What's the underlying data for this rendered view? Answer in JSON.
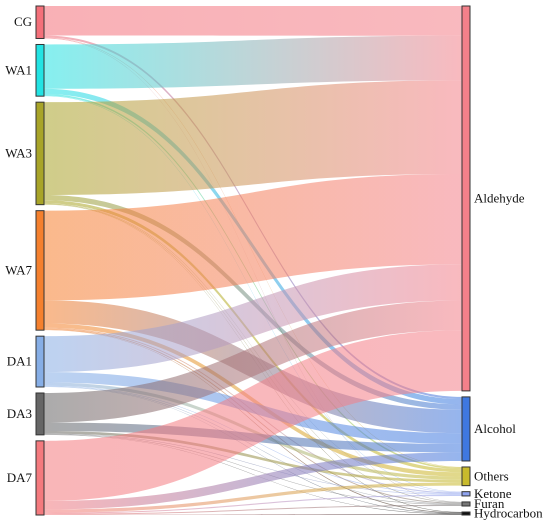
{
  "sources": [
    {
      "id": "CG",
      "label": "CG",
      "color": "#f4707a"
    },
    {
      "id": "WA1",
      "label": "WA1",
      "color": "#22e3e3"
    },
    {
      "id": "WA3",
      "label": "WA3",
      "color": "#a8a428"
    },
    {
      "id": "WA7",
      "label": "WA7",
      "color": "#f5802d"
    },
    {
      "id": "DA1",
      "label": "DA1",
      "color": "#86aee6"
    },
    {
      "id": "DA3",
      "label": "DA3",
      "color": "#666666"
    },
    {
      "id": "DA7",
      "label": "DA7",
      "color": "#f47a7e"
    }
  ],
  "targets": [
    {
      "id": "Aldehyde",
      "label": "Aldehyde",
      "color": "#f4808a"
    },
    {
      "id": "Alcohol",
      "label": "Alcohol",
      "color": "#3f78e0"
    },
    {
      "id": "Others",
      "label": "Others",
      "color": "#c8ba2c"
    },
    {
      "id": "Ketone",
      "label": "Ketone",
      "color": "#8fa3f0"
    },
    {
      "id": "Furan",
      "label": "Furan",
      "color": "#777777"
    },
    {
      "id": "Hydrocarbon",
      "label": "Hydrocarbon",
      "color": "#111111"
    }
  ],
  "links": [
    {
      "source": "CG",
      "target": "Aldehyde",
      "value": 28
    },
    {
      "source": "CG",
      "target": "Alcohol",
      "value": 2
    },
    {
      "source": "CG",
      "target": "Others",
      "value": 0.5
    },
    {
      "source": "CG",
      "target": "Furan",
      "value": 0.3
    },
    {
      "source": "WA1",
      "target": "Aldehyde",
      "value": 42
    },
    {
      "source": "WA1",
      "target": "Alcohol",
      "value": 5
    },
    {
      "source": "WA1",
      "target": "Others",
      "value": 1.5
    },
    {
      "source": "WA1",
      "target": "Ketone",
      "value": 0.5
    },
    {
      "source": "WA3",
      "target": "Aldehyde",
      "value": 88
    },
    {
      "source": "WA3",
      "target": "Alcohol",
      "value": 5
    },
    {
      "source": "WA3",
      "target": "Others",
      "value": 3
    },
    {
      "source": "WA3",
      "target": "Ketone",
      "value": 0.5
    },
    {
      "source": "WA3",
      "target": "Furan",
      "value": 0.5
    },
    {
      "source": "WA3",
      "target": "Hydrocarbon",
      "value": 0.2
    },
    {
      "source": "WA7",
      "target": "Aldehyde",
      "value": 85
    },
    {
      "source": "WA7",
      "target": "Alcohol",
      "value": 22
    },
    {
      "source": "WA7",
      "target": "Others",
      "value": 4
    },
    {
      "source": "WA7",
      "target": "Ketone",
      "value": 1
    },
    {
      "source": "WA7",
      "target": "Furan",
      "value": 1
    },
    {
      "source": "WA7",
      "target": "Hydrocarbon",
      "value": 0.3
    },
    {
      "source": "DA1",
      "target": "Aldehyde",
      "value": 34
    },
    {
      "source": "DA1",
      "target": "Alcohol",
      "value": 10
    },
    {
      "source": "DA1",
      "target": "Others",
      "value": 3
    },
    {
      "source": "DA1",
      "target": "Ketone",
      "value": 0.5
    },
    {
      "source": "DA1",
      "target": "Furan",
      "value": 0.5
    },
    {
      "source": "DA1",
      "target": "Hydrocarbon",
      "value": 0.2
    },
    {
      "source": "DA3",
      "target": "Aldehyde",
      "value": 28
    },
    {
      "source": "DA3",
      "target": "Alcohol",
      "value": 8
    },
    {
      "source": "DA3",
      "target": "Others",
      "value": 2.5
    },
    {
      "source": "DA3",
      "target": "Ketone",
      "value": 0.5
    },
    {
      "source": "DA3",
      "target": "Furan",
      "value": 0.5
    },
    {
      "source": "DA3",
      "target": "Hydrocarbon",
      "value": 0.2
    },
    {
      "source": "DA7",
      "target": "Aldehyde",
      "value": 57
    },
    {
      "source": "DA7",
      "target": "Alcohol",
      "value": 8
    },
    {
      "source": "DA7",
      "target": "Others",
      "value": 3
    },
    {
      "source": "DA7",
      "target": "Ketone",
      "value": 1
    },
    {
      "source": "DA7",
      "target": "Furan",
      "value": 1
    },
    {
      "source": "DA7",
      "target": "Hydrocarbon",
      "value": 0.3
    }
  ]
}
